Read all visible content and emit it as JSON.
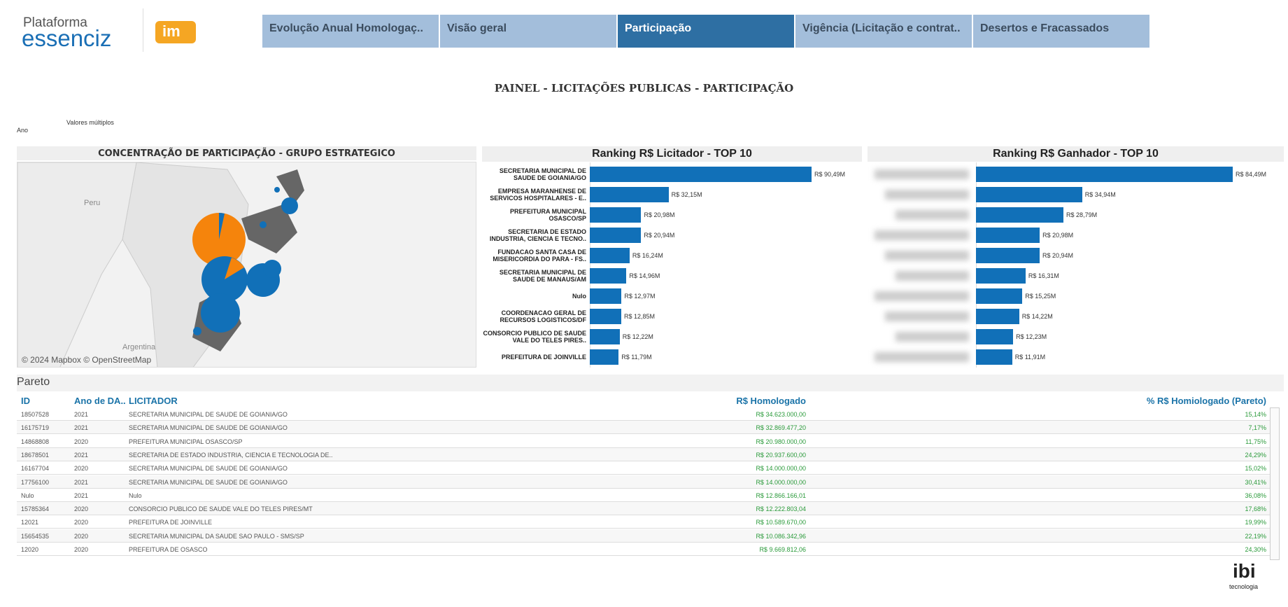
{
  "header": {
    "brand_top": "Plataforma",
    "brand_main": "essenciz",
    "brand_badge": "im",
    "tabs": [
      "Evolução Anual Homologaç..",
      "Visão geral",
      "Participação",
      "Vigência (Licitação e contrat..",
      "Desertos e Fracassados"
    ],
    "active_tab": 2
  },
  "title": "PAINEL - LICITAÇÕES PUBLICAS - PARTICIPAÇÃO",
  "filter": {
    "label": "Ano",
    "value": "Valores múltiplos"
  },
  "map": {
    "title": "CONCENTRAÇÃO DE PARTICIPAÇÃO - GRUPO ESTRATEGICO",
    "places": [
      "Peru",
      "Argentina"
    ],
    "credit": "© 2024 Mapbox © OpenStreetMap"
  },
  "chart_data": [
    {
      "type": "bar",
      "title": "Ranking R$ Licitador - TOP 10",
      "color": "#1170b8",
      "categories": [
        "SECRETARIA MUNICIPAL DE SAUDE DE GOIANIA/GO",
        "EMPRESA MARANHENSE DE SERVICOS HOSPITALARES - E..",
        "PREFEITURA MUNICIPAL OSASCO/SP",
        "SECRETARIA DE ESTADO INDUSTRIA, CIENCIA E TECNO..",
        "FUNDACAO SANTA CASA DE MISERICORDIA DO PARA - FS..",
        "SECRETARIA MUNICIPAL DE SAUDE DE MANAUS/AM",
        "Nulo",
        "COORDENACAO GERAL DE RECURSOS LOGISTICOS/DF",
        "CONSORCIO PUBLICO DE SAUDE VALE DO TELES PIRES..",
        "PREFEITURA DE JOINVILLE"
      ],
      "values": [
        90.49,
        32.15,
        20.98,
        20.94,
        16.24,
        14.96,
        12.97,
        12.85,
        12.22,
        11.79
      ],
      "value_labels": [
        "R$ 90,49M",
        "R$ 32,15M",
        "R$ 20,98M",
        "R$ 20,94M",
        "R$ 16,24M",
        "R$ 14,96M",
        "R$ 12,97M",
        "R$ 12,85M",
        "R$ 12,22M",
        "R$ 11,79M"
      ]
    },
    {
      "type": "bar",
      "title": "Ranking R$ Ganhador - TOP 10",
      "color": "#1170b8",
      "categories": [
        null,
        null,
        null,
        null,
        null,
        null,
        null,
        null,
        null,
        null
      ],
      "values": [
        84.49,
        34.94,
        28.79,
        20.98,
        20.94,
        16.31,
        15.25,
        14.22,
        12.23,
        11.91
      ],
      "value_labels": [
        "R$ 84,49M",
        "R$ 34,94M",
        "R$ 28,79M",
        "R$ 20,98M",
        "R$ 20,94M",
        "R$ 16,31M",
        "R$ 15,25M",
        "R$ 14,22M",
        "R$ 12,23M",
        "R$ 11,91M"
      ]
    }
  ],
  "table": {
    "title": "Pareto",
    "columns": [
      "ID",
      "Ano de DA..",
      "LICITADOR",
      "R$ Homologado",
      "% R$ Homiologado (Pareto)"
    ],
    "rows": [
      [
        "18507528",
        "2021",
        "SECRETARIA MUNICIPAL DE SAUDE DE GOIANIA/GO",
        "R$ 34.623.000,00",
        "15,14%"
      ],
      [
        "16175719",
        "2021",
        "SECRETARIA MUNICIPAL DE SAUDE DE GOIANIA/GO",
        "R$ 32.869.477,20",
        "7,17%"
      ],
      [
        "14868808",
        "2020",
        "PREFEITURA MUNICIPAL OSASCO/SP",
        "R$ 20.980.000,00",
        "11,75%"
      ],
      [
        "18678501",
        "2021",
        "SECRETARIA DE ESTADO INDUSTRIA, CIENCIA E TECNOLOGIA DE..",
        "R$ 20.937.600,00",
        "24,29%"
      ],
      [
        "16167704",
        "2020",
        "SECRETARIA MUNICIPAL DE SAUDE DE GOIANIA/GO",
        "R$ 14.000.000,00",
        "15,02%"
      ],
      [
        "17756100",
        "2021",
        "SECRETARIA MUNICIPAL DE SAUDE DE GOIANIA/GO",
        "R$ 14.000.000,00",
        "30,41%"
      ],
      [
        "Nulo",
        "2021",
        "Nulo",
        "R$ 12.866.166,01",
        "36,08%"
      ],
      [
        "15785364",
        "2020",
        "CONSORCIO PUBLICO DE SAUDE VALE DO TELES PIRES/MT",
        "R$ 12.222.803,04",
        "17,68%"
      ],
      [
        "12021",
        "2020",
        "PREFEITURA DE JOINVILLE",
        "R$ 10.589.670,00",
        "19,99%"
      ],
      [
        "15654535",
        "2020",
        "SECRETARIA MUNICIPAL DA SAUDE SAO PAULO - SMS/SP",
        "R$ 10.086.342,96",
        "22,19%"
      ],
      [
        "12020",
        "2020",
        "PREFEITURA DE OSASCO",
        "R$ 9.669.812,06",
        "24,30%"
      ]
    ]
  },
  "footer": {
    "logo": "ibi",
    "logo_sub": "tecnologia"
  }
}
